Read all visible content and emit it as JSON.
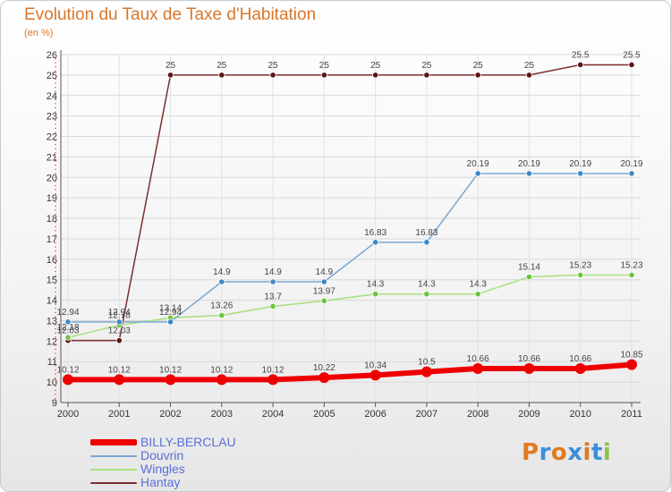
{
  "header": {
    "title": "Evolution du Taux de Taxe d'Habitation",
    "subtitle": "(en %)"
  },
  "logo": {
    "text": "Proxiti",
    "colors": [
      "#e07a1f",
      "#3a8fd8",
      "#e07a1f",
      "#3a8fd8",
      "#e07a1f",
      "#3a8fd8",
      "#8bc34a"
    ]
  },
  "chart_data": {
    "type": "line",
    "title": "Evolution du Taux de Taxe d'Habitation",
    "subtitle": "(en %)",
    "xlabel": "",
    "ylabel": "",
    "categories": [
      "2000",
      "2001",
      "2002",
      "2003",
      "2004",
      "2005",
      "2006",
      "2007",
      "2008",
      "2009",
      "2010",
      "2011"
    ],
    "ylim": [
      9,
      26
    ],
    "yticks": [
      9,
      10,
      11,
      12,
      13,
      14,
      15,
      16,
      17,
      18,
      19,
      20,
      21,
      22,
      23,
      24,
      25,
      26
    ],
    "grid": true,
    "legend_position": "bottom-left",
    "series": [
      {
        "name": "BILLY-BERCLAU",
        "color": "#ee0000",
        "marker": "#ee0000",
        "values": [
          10.12,
          10.12,
          10.12,
          10.12,
          10.12,
          10.22,
          10.34,
          10.5,
          10.66,
          10.66,
          10.66,
          10.85
        ],
        "labels": [
          "10.12",
          "10.12",
          "10.12",
          "10.12",
          "10.12",
          "10.22",
          "10.34",
          "10.5",
          "10.66",
          "10.66",
          "10.66",
          "10.85"
        ]
      },
      {
        "name": "Douvrin",
        "color": "#7ba7d1",
        "marker": "#3d88c9",
        "values": [
          12.94,
          12.94,
          12.94,
          14.9,
          14.9,
          14.9,
          16.83,
          16.83,
          20.19,
          20.19,
          20.19,
          20.19
        ],
        "labels": [
          "12.94",
          "12.94",
          "12.94",
          "14.9",
          "14.9",
          "14.9",
          "16.83",
          "16.83",
          "20.19",
          "20.19",
          "20.19",
          "20.19"
        ]
      },
      {
        "name": "Wingles",
        "color": "#a8e07e",
        "marker": "#6dc33e",
        "values": [
          12.18,
          12.78,
          13.14,
          13.26,
          13.7,
          13.97,
          14.3,
          14.3,
          14.3,
          15.14,
          15.23,
          15.23
        ],
        "labels": [
          "12.18",
          "12.78",
          "13.14",
          "13.26",
          "13.7",
          "13.97",
          "14.3",
          "14.3",
          "14.3",
          "15.14",
          "15.23",
          "15.23"
        ]
      },
      {
        "name": "Hantay",
        "color": "#7a2e2e",
        "marker": "#5a1515",
        "values": [
          12.03,
          12.03,
          25,
          25,
          25,
          25,
          25,
          25,
          25,
          25,
          25.5,
          25.5
        ],
        "labels": [
          "12.03",
          "12.03",
          "25",
          "25",
          "25",
          "25",
          "25",
          "25",
          "25",
          "25",
          "25.5",
          "25.5"
        ]
      }
    ]
  }
}
